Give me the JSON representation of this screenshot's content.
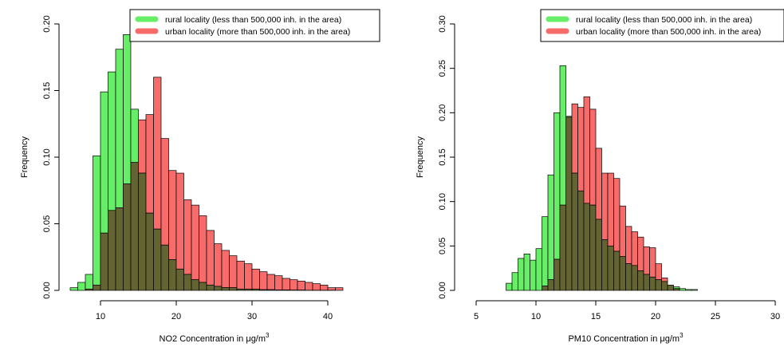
{
  "chart_data": [
    {
      "type": "bar",
      "subtype": "overlaid-histogram",
      "xlabel": "NO2 Concentration in μg/m",
      "xlabel_superscript": "3",
      "ylabel": "Frequency",
      "xlim": [
        6,
        42
      ],
      "ylim": [
        0,
        0.2
      ],
      "bin_width": 1,
      "xticks": [
        10,
        20,
        30,
        40
      ],
      "yticks": [
        0.0,
        0.05,
        0.1,
        0.15,
        0.2
      ],
      "ytick_labels": [
        "0.00",
        "0.05",
        "0.10",
        "0.15",
        "0.20"
      ],
      "legend_position": "top-right",
      "series": [
        {
          "name": "rural locality (less than 500,000 inh. in the area)",
          "color": "#66ee66",
          "x": [
            6,
            7,
            8,
            9,
            10,
            11,
            12,
            13,
            14,
            15,
            16,
            17,
            18,
            19,
            20,
            21,
            22,
            23,
            24,
            25,
            26,
            27,
            28,
            29,
            30,
            31,
            32,
            33,
            34,
            35,
            36,
            37,
            38,
            39,
            40,
            41
          ],
          "values": [
            0.002,
            0.006,
            0.012,
            0.101,
            0.149,
            0.164,
            0.181,
            0.192,
            0.136,
            0.088,
            0.058,
            0.046,
            0.034,
            0.023,
            0.016,
            0.012,
            0.008,
            0.006,
            0.004,
            0.003,
            0.002,
            0.002,
            0.001,
            0.001,
            0.001,
            0.0005,
            0.0005,
            0.0003,
            0.0003,
            0.0002,
            0.0002,
            0.0001,
            0.0001,
            0.0001,
            0.0001,
            0
          ]
        },
        {
          "name": "urban locality (more than 500,000 inh. in the area)",
          "color": "#f86b6b",
          "x": [
            6,
            7,
            8,
            9,
            10,
            11,
            12,
            13,
            14,
            15,
            16,
            17,
            18,
            19,
            20,
            21,
            22,
            23,
            24,
            25,
            26,
            27,
            28,
            29,
            30,
            31,
            32,
            33,
            34,
            35,
            36,
            37,
            38,
            39,
            40,
            41
          ],
          "values": [
            0,
            0,
            0.001,
            0.004,
            0.043,
            0.06,
            0.062,
            0.08,
            0.096,
            0.128,
            0.132,
            0.16,
            0.114,
            0.09,
            0.088,
            0.068,
            0.064,
            0.056,
            0.045,
            0.035,
            0.03,
            0.026,
            0.022,
            0.02,
            0.016,
            0.014,
            0.012,
            0.011,
            0.009,
            0.008,
            0.007,
            0.006,
            0.005,
            0.004,
            0.002,
            0.002
          ]
        }
      ]
    },
    {
      "type": "bar",
      "subtype": "overlaid-histogram",
      "xlabel": "PM10 Concentration in μg/m",
      "xlabel_superscript": "3",
      "ylabel": "Frequency",
      "xlim": [
        5,
        31
      ],
      "ylim": [
        0,
        0.3
      ],
      "bin_width": 0.5,
      "xticks": [
        5,
        10,
        15,
        20,
        25,
        30
      ],
      "yticks": [
        0.0,
        0.05,
        0.1,
        0.15,
        0.2,
        0.25,
        0.3
      ],
      "ytick_labels": [
        "0.00",
        "0.05",
        "0.10",
        "0.15",
        "0.20",
        "0.25",
        "0.30"
      ],
      "legend_position": "top-right",
      "series": [
        {
          "name": "rural locality (less than 500,000 inh. in the area)",
          "color": "#66ee66",
          "x": [
            7.5,
            8,
            8.5,
            9,
            9.5,
            10,
            10.5,
            11,
            11.5,
            12,
            12.5,
            13,
            13.5,
            14,
            14.5,
            15,
            15.5,
            16,
            16.5,
            17,
            17.5,
            18,
            18.5,
            19,
            19.5,
            20,
            20.5,
            21,
            21.5,
            22,
            22.5,
            23
          ],
          "values": [
            0.008,
            0.02,
            0.036,
            0.041,
            0.034,
            0.047,
            0.083,
            0.13,
            0.2,
            0.253,
            0.196,
            0.132,
            0.112,
            0.098,
            0.096,
            0.08,
            0.057,
            0.05,
            0.044,
            0.038,
            0.03,
            0.028,
            0.022,
            0.018,
            0.015,
            0.012,
            0.01,
            0.006,
            0.004,
            0.002,
            0.001,
            0.001
          ]
        },
        {
          "name": "urban locality (more than 500,000 inh. in the area)",
          "color": "#f86b6b",
          "x": [
            10.5,
            11,
            11.5,
            12,
            12.5,
            13,
            13.5,
            14,
            14.5,
            15,
            15.5,
            16,
            16.5,
            17,
            17.5,
            18,
            18.5,
            19,
            19.5,
            20,
            20.5,
            21,
            21.5
          ],
          "values": [
            0.005,
            0.012,
            0.035,
            0.096,
            0.195,
            0.21,
            0.206,
            0.218,
            0.204,
            0.16,
            0.132,
            0.132,
            0.126,
            0.095,
            0.072,
            0.066,
            0.06,
            0.049,
            0.048,
            0.03,
            0.014,
            0.006,
            0.002
          ]
        }
      ]
    }
  ]
}
